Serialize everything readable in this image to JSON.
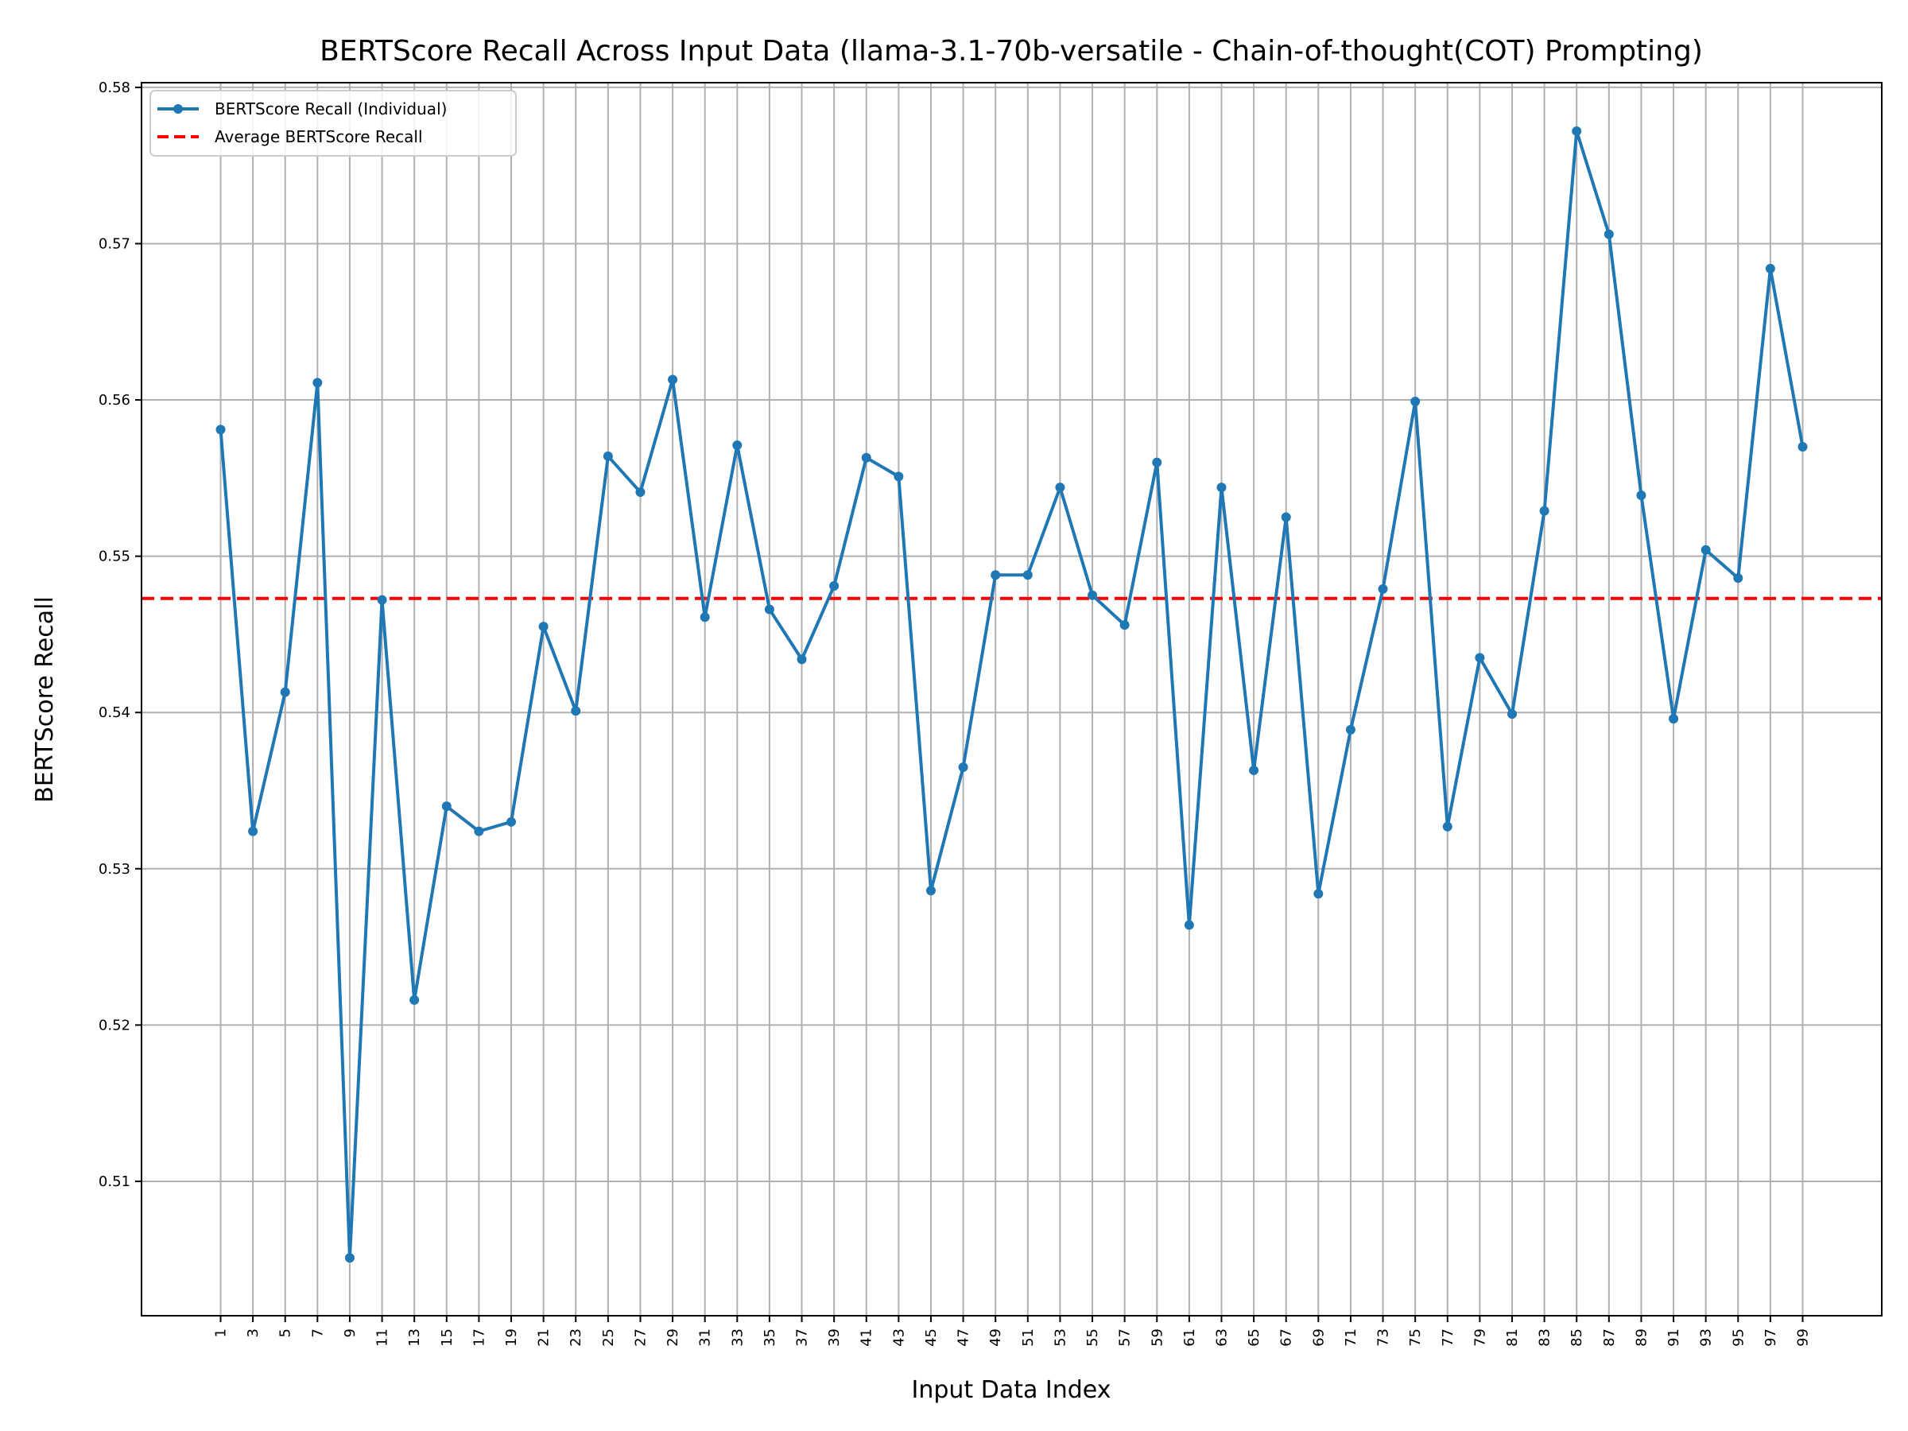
{
  "chart_data": {
    "type": "line",
    "title": "BERTScore Recall Across Input Data (llama-3.1-70b-versatile - Chain-of-thought(COT) Prompting)",
    "xlabel": "Input Data Index",
    "ylabel": "BERTScore Recall",
    "x": [
      1,
      3,
      5,
      7,
      9,
      11,
      13,
      15,
      17,
      19,
      21,
      23,
      25,
      27,
      29,
      31,
      33,
      35,
      37,
      39,
      41,
      43,
      45,
      47,
      49,
      51,
      53,
      55,
      57,
      59,
      61,
      63,
      65,
      67,
      69,
      71,
      73,
      75,
      77,
      79,
      81,
      83,
      85,
      87,
      89,
      91,
      93,
      95,
      97,
      99
    ],
    "x_ticks": [
      "1",
      "3",
      "5",
      "7",
      "9",
      "11",
      "13",
      "15",
      "17",
      "19",
      "21",
      "23",
      "25",
      "27",
      "29",
      "31",
      "33",
      "35",
      "37",
      "39",
      "41",
      "43",
      "45",
      "47",
      "49",
      "51",
      "53",
      "55",
      "57",
      "59",
      "61",
      "63",
      "65",
      "67",
      "69",
      "71",
      "73",
      "75",
      "77",
      "79",
      "81",
      "83",
      "85",
      "87",
      "89",
      "91",
      "93",
      "95",
      "97",
      "99"
    ],
    "y_ticks": [
      "0.51",
      "0.52",
      "0.53",
      "0.54",
      "0.55",
      "0.56",
      "0.57",
      "0.58"
    ],
    "y_tick_values": [
      0.51,
      0.52,
      0.53,
      0.54,
      0.55,
      0.56,
      0.57,
      0.58
    ],
    "xlim": [
      -3.9,
      103.9
    ],
    "ylim": [
      0.5014,
      0.5803
    ],
    "grid": true,
    "legend_position": "top-left",
    "series": [
      {
        "name": "BERTScore Recall (Individual)",
        "color": "#1f77b4",
        "style": "solid-with-markers",
        "values": [
          0.5581,
          0.5324,
          0.5413,
          0.5611,
          0.5051,
          0.5472,
          0.5216,
          0.534,
          0.5324,
          0.533,
          0.5455,
          0.5401,
          0.5564,
          0.5541,
          0.5613,
          0.5461,
          0.5571,
          0.5466,
          0.5434,
          0.5481,
          0.5563,
          0.5551,
          0.5286,
          0.5365,
          0.5488,
          0.5488,
          0.5544,
          0.5475,
          0.5456,
          0.556,
          0.5264,
          0.5544,
          0.5363,
          0.5525,
          0.5284,
          0.5389,
          0.5479,
          0.5599,
          0.5327,
          0.5435,
          0.5399,
          0.5529,
          0.5772,
          0.5706,
          0.5539,
          0.5396,
          0.5504,
          0.5486,
          0.5684,
          0.557
        ]
      },
      {
        "name": "Average BERTScore Recall",
        "color": "#ff0000",
        "style": "dashed",
        "value": 0.5473
      }
    ]
  }
}
